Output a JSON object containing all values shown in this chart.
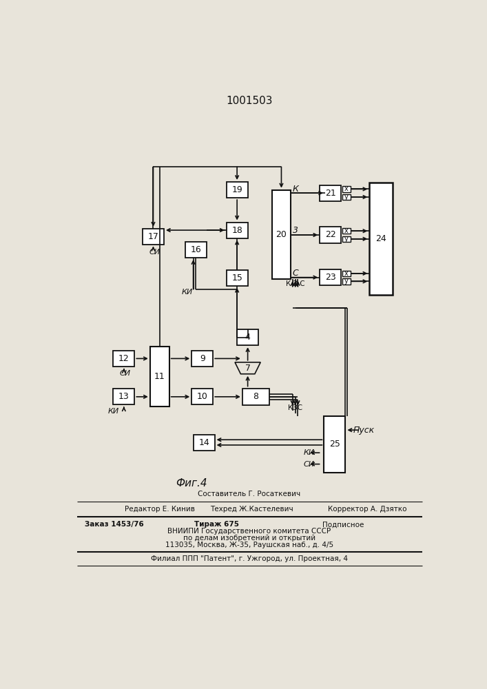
{
  "title": "1001503",
  "fig_label": "Фиг.4",
  "background_color": "#e8e4da",
  "line_color": "#111111",
  "box_color": "#ffffff",
  "footer": {
    "line1": "Составитель Г. Росаткевич",
    "line2_left": "Редактор Е. Кинив",
    "line2_mid": "Техред Ж.Кастелевич",
    "line2_right": "Корректор А. Дзятко",
    "line3_left": "Заказ 1453/76",
    "line3_mid": "Тираж 675",
    "line3_right": "Подписное",
    "line4": "ВНИИПИ Государственного комитета СССР",
    "line5": "по делам изобретений и открытий",
    "line6": "113035, Москва, Ж-35, Раушская наб., д. 4/5",
    "line7": "Филиал ППП \"Патент\", г. Ужгород, ул. Проектная, 4"
  }
}
